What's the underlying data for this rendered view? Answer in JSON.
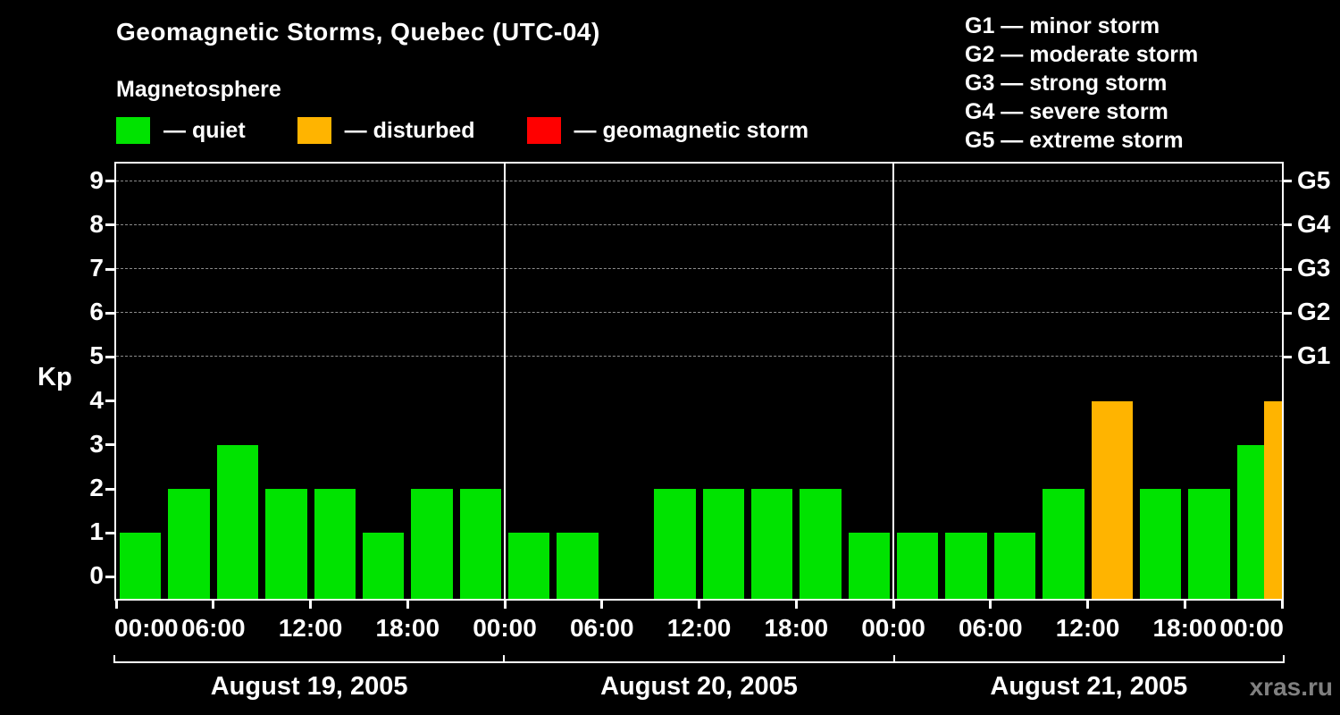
{
  "title": "Geomagnetic Storms, Quebec (UTC-04)",
  "watermark": "xras.ru",
  "legend": {
    "title": "Magnetosphere",
    "items": [
      {
        "label": "— quiet",
        "status": "quiet"
      },
      {
        "label": "— disturbed",
        "status": "disturbed"
      },
      {
        "label": "— geomagnetic storm",
        "status": "storm"
      }
    ]
  },
  "storm_scale_legend": [
    {
      "code": "G1",
      "label": "— minor storm"
    },
    {
      "code": "G2",
      "label": "— moderate storm"
    },
    {
      "code": "G3",
      "label": "— strong storm"
    },
    {
      "code": "G4",
      "label": "— severe storm"
    },
    {
      "code": "G5",
      "label": "— extreme storm"
    }
  ],
  "chart_data": {
    "type": "bar",
    "title": "Geomagnetic Storms, Quebec (UTC-04)",
    "ylabel": "Kp",
    "ylim": [
      0,
      9
    ],
    "yticks": [
      0,
      1,
      2,
      3,
      4,
      5,
      6,
      7,
      8,
      9
    ],
    "gridlines_at": [
      5,
      6,
      7,
      8,
      9
    ],
    "grid_style": "dashed",
    "right_axis_labels": [
      {
        "level": 5,
        "label": "G1"
      },
      {
        "level": 6,
        "label": "G2"
      },
      {
        "level": 7,
        "label": "G3"
      },
      {
        "level": 8,
        "label": "G4"
      },
      {
        "level": 9,
        "label": "G5"
      }
    ],
    "hours_per_bar": 3,
    "x_tick_hours": [
      0,
      6,
      12,
      18
    ],
    "x_tick_format": [
      "00:00",
      "06:00",
      "12:00",
      "18:00"
    ],
    "x_axis_end_label": "00:00",
    "status_colors": {
      "quiet": "#00e300",
      "disturbed": "#ffb400",
      "storm": "#ff0000"
    },
    "days": [
      {
        "date": "August 19, 2005",
        "values": [
          1,
          2,
          3,
          2,
          2,
          1,
          2,
          2
        ],
        "status": [
          "quiet",
          "quiet",
          "quiet",
          "quiet",
          "quiet",
          "quiet",
          "quiet",
          "quiet"
        ]
      },
      {
        "date": "August 20, 2005",
        "values": [
          1,
          1,
          0,
          2,
          2,
          2,
          2,
          1
        ],
        "status": [
          "quiet",
          "quiet",
          "quiet",
          "quiet",
          "quiet",
          "quiet",
          "quiet",
          "quiet"
        ]
      },
      {
        "date": "August 21, 2005",
        "values": [
          1,
          1,
          1,
          2,
          4,
          2,
          2,
          3
        ],
        "status": [
          "quiet",
          "quiet",
          "quiet",
          "quiet",
          "disturbed",
          "quiet",
          "quiet",
          "quiet"
        ]
      }
    ],
    "partial_next_bar": {
      "value": 4,
      "status": "disturbed"
    }
  }
}
